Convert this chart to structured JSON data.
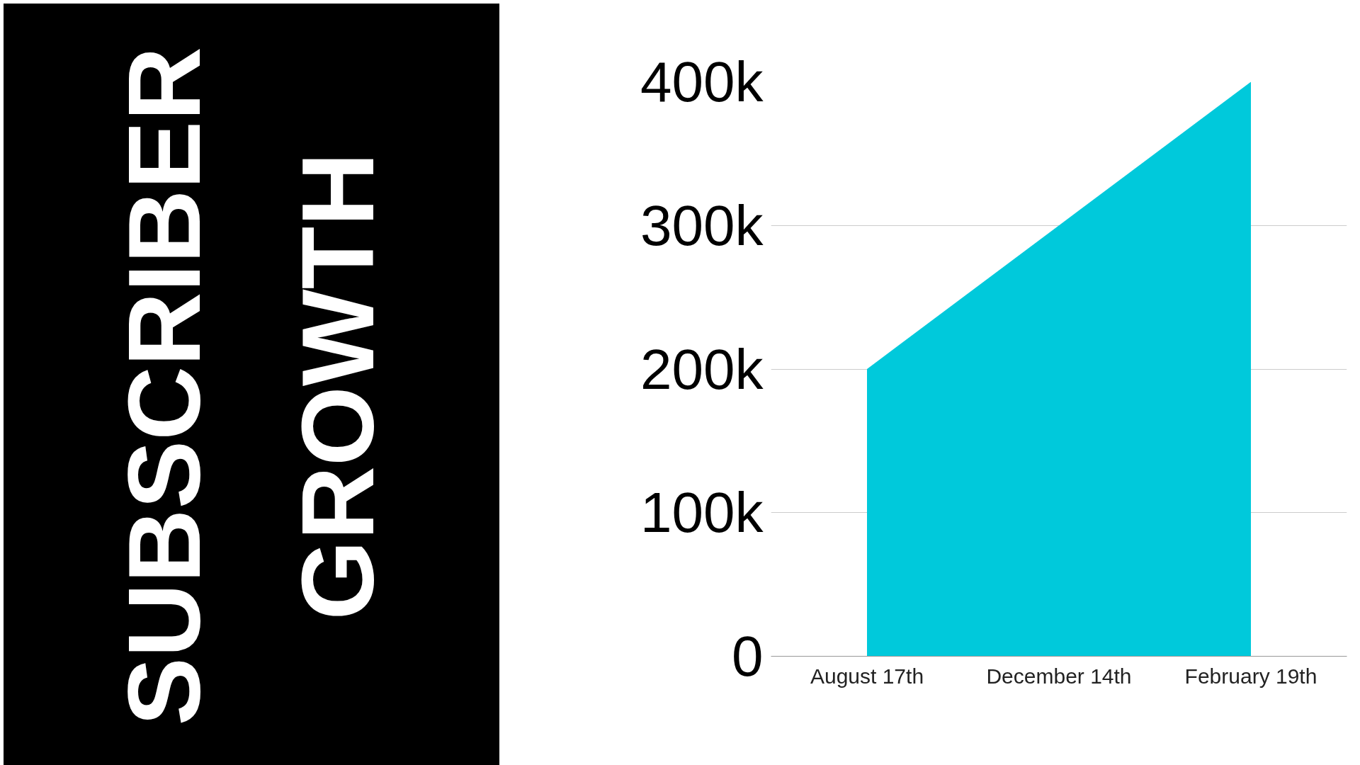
{
  "chart_data": {
    "type": "area",
    "title": "SUBSCRIBER GROWTH",
    "categories": [
      "August 17th",
      "December 14th",
      "February 19th"
    ],
    "series": [
      {
        "color": "#00c9db",
        "values": [
          200000,
          300000,
          400000
        ]
      }
    ],
    "ylim": [
      0,
      400000
    ],
    "yticks": [
      0,
      {
        "value": 100000,
        "label": "100k"
      },
      {
        "value": 200000,
        "label": "200k"
      },
      {
        "value": 300000,
        "label": "300k"
      },
      {
        "value": 400000,
        "label": "400k"
      }
    ],
    "grid": "y"
  }
}
